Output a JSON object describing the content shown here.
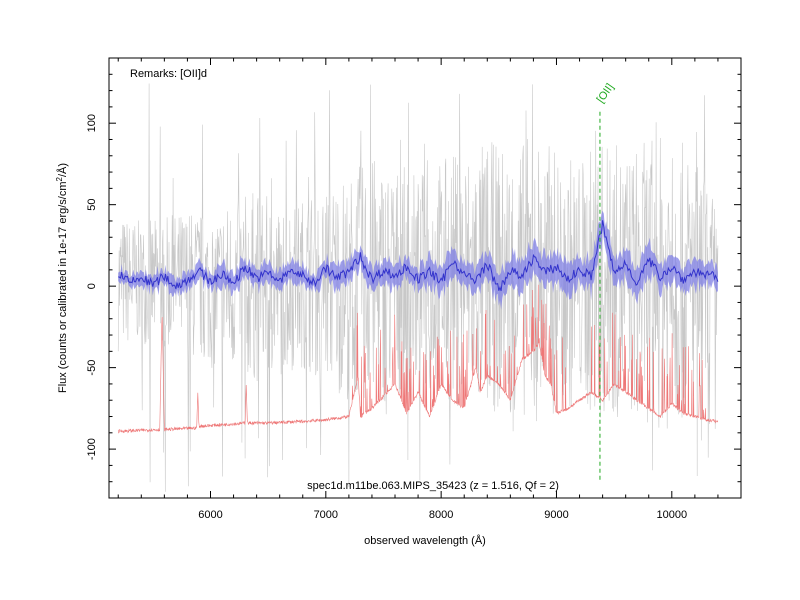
{
  "chart_data": {
    "type": "line",
    "remarks": "Remarks: [OII]d",
    "caption": "spec1d.m11be.063.MIPS_35423 (z = 1.516, Qf = 2)",
    "xlabel": "observed wavelength (Å)",
    "ylabel": "Flux (counts or calibrated in 1e-17 erg/s/cm",
    "ylabel_sup": "2",
    "ylabel_tail": "/Å)",
    "xlim": [
      5120,
      10600
    ],
    "ylim": [
      -130,
      140
    ],
    "x_ticks": [
      6000,
      7000,
      8000,
      9000,
      10000
    ],
    "x_tick_labels": [
      "6000",
      "7000",
      "8000",
      "9000",
      "10000"
    ],
    "y_ticks": [
      -100,
      -50,
      0,
      50,
      100
    ],
    "y_tick_labels": [
      "-100",
      "-50",
      "0",
      "50",
      "100"
    ],
    "grid": false,
    "series": [
      {
        "color": "#c8c8c8",
        "x": [
          5200,
          5400,
          5600,
          5800,
          6000,
          6200,
          6400,
          6600,
          6800,
          7000,
          7200,
          7400,
          7600,
          7800,
          8000,
          8200,
          8400,
          8600,
          8800,
          9000,
          9200,
          9400,
          9600,
          9800,
          10000,
          10200,
          10400
        ],
        "upper": [
          45,
          40,
          42,
          48,
          45,
          55,
          60,
          50,
          55,
          65,
          70,
          80,
          75,
          70,
          80,
          85,
          90,
          85,
          95,
          85,
          80,
          90,
          85,
          90,
          95,
          80,
          50
        ],
        "lower": [
          -40,
          -35,
          -40,
          -45,
          -50,
          -55,
          -60,
          -55,
          -50,
          -60,
          -70,
          -75,
          -70,
          -65,
          -70,
          -75,
          -80,
          -75,
          -85,
          -80,
          -75,
          -85,
          -80,
          -85,
          -90,
          -75,
          -45
        ]
      },
      {
        "color": "#3333cc",
        "x": [
          5200,
          5300,
          5400,
          5500,
          5600,
          5700,
          5800,
          5900,
          6000,
          6100,
          6200,
          6300,
          6400,
          6500,
          6600,
          6700,
          6800,
          6900,
          7000,
          7100,
          7200,
          7300,
          7400,
          7500,
          7600,
          7700,
          7800,
          7900,
          8000,
          8100,
          8200,
          8300,
          8400,
          8500,
          8600,
          8700,
          8800,
          8900,
          9000,
          9100,
          9200,
          9300,
          9400,
          9500,
          9600,
          9700,
          9800,
          9900,
          10000,
          10100,
          10200,
          10300,
          10400
        ],
        "y": [
          8,
          2,
          5,
          1,
          6,
          0,
          4,
          9,
          3,
          7,
          2,
          12,
          5,
          8,
          3,
          10,
          6,
          2,
          11,
          5,
          9,
          18,
          4,
          10,
          6,
          12,
          4,
          9,
          2,
          16,
          7,
          3,
          14,
          -3,
          10,
          5,
          18,
          8,
          12,
          4,
          10,
          6,
          38,
          8,
          14,
          2,
          16,
          6,
          12,
          4,
          9,
          7,
          5
        ],
        "err": [
          4,
          4,
          4,
          5,
          5,
          5,
          5,
          5,
          5,
          6,
          6,
          6,
          6,
          6,
          6,
          6,
          6,
          6,
          6,
          7,
          7,
          7,
          7,
          7,
          7,
          7,
          7,
          8,
          8,
          8,
          8,
          8,
          8,
          9,
          9,
          9,
          9,
          9,
          9,
          9,
          9,
          9,
          9,
          9,
          9,
          9,
          9,
          8,
          8,
          8,
          8,
          7,
          7
        ]
      },
      {
        "color": "#ee7777",
        "x": [
          5200,
          5560,
          5580,
          5600,
          5880,
          5890,
          5900,
          6100,
          6300,
          6310,
          6320,
          6500,
          6800,
          7000,
          7200,
          7280,
          7300,
          7400,
          7600,
          7700,
          7800,
          7900,
          8000,
          8100,
          8200,
          8300,
          8340,
          8400,
          8500,
          8600,
          8700,
          8800,
          8850,
          8900,
          8950,
          9000,
          9100,
          9200,
          9300,
          9400,
          9500,
          9600,
          9700,
          9800,
          9900,
          10000,
          10100,
          10200,
          10300,
          10400
        ],
        "y": [
          -89,
          -88,
          -15,
          -88,
          -87,
          -65,
          -86,
          -85,
          -84,
          -60,
          -84,
          -84,
          -83,
          -82,
          -80,
          -55,
          -80,
          -75,
          -60,
          -78,
          -65,
          -80,
          -60,
          -70,
          -75,
          -50,
          -65,
          -55,
          -60,
          -70,
          -45,
          -40,
          -35,
          -55,
          -60,
          -78,
          -75,
          -70,
          -65,
          -70,
          -60,
          -65,
          -70,
          -75,
          -80,
          -72,
          -78,
          -80,
          -82,
          -83
        ]
      }
    ],
    "annotation": {
      "label": "[OII]",
      "x": 9377,
      "color": "#22aa22"
    }
  }
}
